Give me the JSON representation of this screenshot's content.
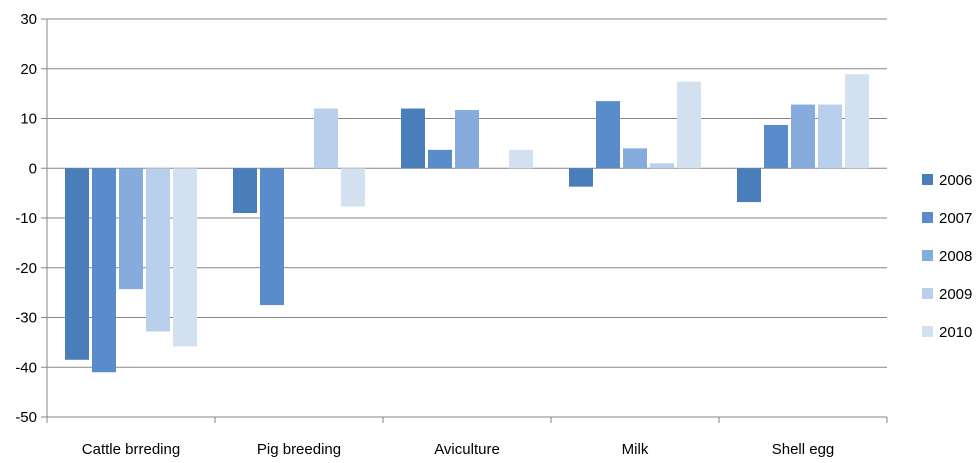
{
  "chart_data": {
    "type": "bar",
    "title": "",
    "xlabel": "",
    "ylabel": "",
    "categories": [
      "Cattle brreding",
      "Pig breeding",
      "Aviculture",
      "Milk",
      "Shell egg"
    ],
    "series": [
      {
        "name": "2006",
        "color": "#4a7ebb",
        "values": [
          -38.5,
          -9,
          12,
          -3.7,
          -6.8
        ]
      },
      {
        "name": "2007",
        "color": "#5a8ccb",
        "values": [
          -41,
          -27.5,
          3.7,
          13.5,
          8.7
        ]
      },
      {
        "name": "2008",
        "color": "#85acdc",
        "values": [
          -24.3,
          0,
          11.7,
          4,
          12.8
        ]
      },
      {
        "name": "2009",
        "color": "#b9d0ec",
        "values": [
          -32.8,
          12,
          0,
          1,
          12.8
        ]
      },
      {
        "name": "2010",
        "color": "#d3e0ef",
        "values": [
          -35.8,
          -7.7,
          3.7,
          17.4,
          18.9
        ]
      }
    ],
    "ylim": [
      -50,
      30
    ],
    "yticks": [
      "30",
      "20",
      "10",
      "0",
      "-10",
      "-20",
      "-30",
      "-40",
      "-50"
    ],
    "grid": true,
    "legend_position": "right"
  }
}
